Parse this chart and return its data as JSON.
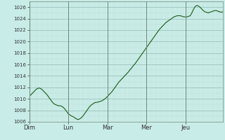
{
  "background_color": "#c8ece8",
  "plot_bg_color": "#cceee8",
  "line_color": "#1a5c1a",
  "grid_color_minor": "#b8ddd8",
  "grid_color_major": "#90bcb8",
  "tick_color": "#333333",
  "ylim": [
    1006,
    1027
  ],
  "yticks": [
    1006,
    1008,
    1010,
    1012,
    1014,
    1016,
    1018,
    1020,
    1022,
    1024,
    1026
  ],
  "day_labels": [
    "Dim",
    "Lun",
    "Mar",
    "Mer",
    "Jeu"
  ],
  "day_positions": [
    0,
    24,
    48,
    72,
    96
  ],
  "figsize": [
    3.2,
    2.0
  ],
  "dpi": 100,
  "n_points": 120,
  "pressure_data": [
    1010.5,
    1010.7,
    1011.0,
    1011.3,
    1011.6,
    1011.8,
    1011.9,
    1011.8,
    1011.6,
    1011.3,
    1011.0,
    1010.7,
    1010.3,
    1009.9,
    1009.5,
    1009.2,
    1009.0,
    1008.9,
    1008.8,
    1008.8,
    1008.7,
    1008.5,
    1008.2,
    1007.8,
    1007.4,
    1007.2,
    1007.0,
    1006.9,
    1006.7,
    1006.5,
    1006.4,
    1006.5,
    1006.7,
    1007.0,
    1007.4,
    1007.8,
    1008.2,
    1008.6,
    1008.9,
    1009.1,
    1009.3,
    1009.4,
    1009.4,
    1009.5,
    1009.6,
    1009.7,
    1009.9,
    1010.1,
    1010.4,
    1010.7,
    1011.0,
    1011.3,
    1011.7,
    1012.1,
    1012.5,
    1012.9,
    1013.2,
    1013.5,
    1013.8,
    1014.1,
    1014.4,
    1014.7,
    1015.1,
    1015.4,
    1015.8,
    1016.1,
    1016.5,
    1016.9,
    1017.3,
    1017.7,
    1018.1,
    1018.5,
    1018.9,
    1019.3,
    1019.7,
    1020.1,
    1020.5,
    1020.9,
    1021.3,
    1021.7,
    1022.1,
    1022.4,
    1022.7,
    1023.0,
    1023.3,
    1023.5,
    1023.7,
    1023.9,
    1024.1,
    1024.3,
    1024.4,
    1024.5,
    1024.5,
    1024.5,
    1024.4,
    1024.3,
    1024.3,
    1024.3,
    1024.4,
    1024.5,
    1025.0,
    1025.6,
    1026.1,
    1026.3,
    1026.2,
    1026.0,
    1025.7,
    1025.4,
    1025.2,
    1025.1,
    1025.0,
    1025.1,
    1025.2,
    1025.3,
    1025.4,
    1025.4,
    1025.3,
    1025.2,
    1025.1,
    1025.2
  ]
}
